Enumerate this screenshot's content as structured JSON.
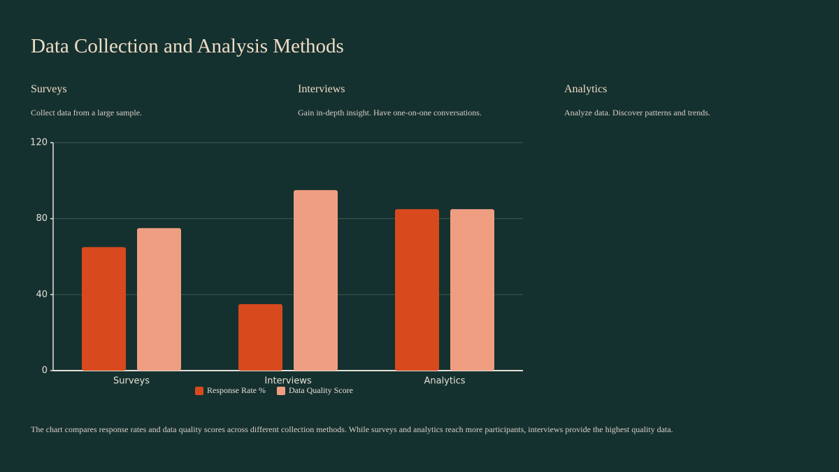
{
  "title": "Data Collection and Analysis Methods",
  "sections": [
    {
      "title": "Surveys",
      "text": "Collect data from a large sample."
    },
    {
      "title": "Interviews",
      "text": "Gain in-depth insight. Have one-on-one conversations."
    },
    {
      "title": "Analytics",
      "text": "Analyze data. Discover patterns and trends."
    }
  ],
  "chart_data": {
    "type": "bar",
    "categories": [
      "Surveys",
      "Interviews",
      "Analytics"
    ],
    "series": [
      {
        "name": "Response Rate %",
        "color": "#d9491e",
        "values": [
          65,
          35,
          85
        ]
      },
      {
        "name": "Data Quality Score",
        "color": "#f09e82",
        "values": [
          75,
          95,
          85
        ]
      }
    ],
    "ylim": [
      0,
      120
    ],
    "yticks": [
      0,
      40,
      80,
      120
    ],
    "grid": true,
    "legend": "bottom"
  },
  "note": "The chart compares response rates and data quality scores across different collection methods. While surveys and analytics reach more participants, interviews provide the highest quality data."
}
